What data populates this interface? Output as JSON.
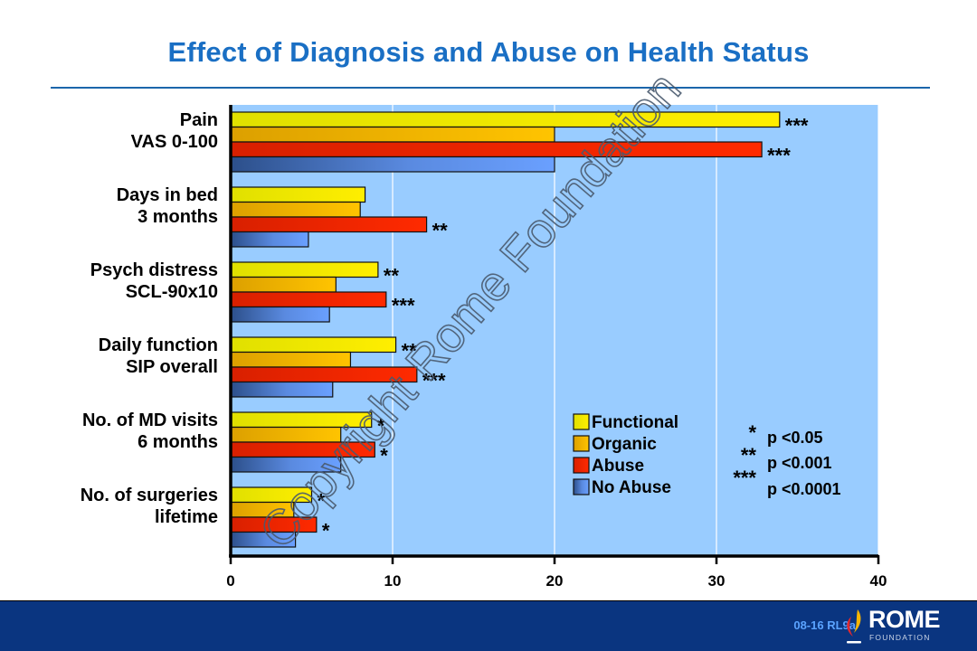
{
  "title": "Effect of Diagnosis and Abuse on Health Status",
  "footer": {
    "slide_code": "08-16  RL9a",
    "logo_word": "ROME",
    "logo_sub": "FOUNDATION"
  },
  "watermark": "Copyright Rome Foundation",
  "colors": {
    "title": "#1a6fc4",
    "plot_bg": "#99ccff",
    "functional": "#f5e600",
    "organic": "#f4b400",
    "abuse": "#ff2200",
    "no_abuse": "#6699ff",
    "footer_bg": "#0a3580"
  },
  "chart_data": {
    "type": "bar",
    "orientation": "horizontal",
    "title": "Effect of Diagnosis and Abuse on Health Status",
    "xlabel": "",
    "ylabel": "",
    "xlim": [
      0,
      40
    ],
    "xticks": [
      0,
      10,
      20,
      30,
      40
    ],
    "grid": true,
    "legend_position": "bottom-right",
    "categories": [
      [
        "Pain",
        "VAS 0-100"
      ],
      [
        "Days in bed",
        "3 months"
      ],
      [
        "Psych distress",
        "SCL-90x10"
      ],
      [
        "Daily function",
        "SIP overall"
      ],
      [
        "No. of MD visits",
        "6 months"
      ],
      [
        "No. of surgeries",
        "lifetime"
      ]
    ],
    "series": [
      {
        "name": "Functional",
        "key": "functional",
        "values": [
          33.9,
          8.3,
          9.1,
          10.2,
          8.7,
          5.0
        ],
        "sig": [
          "***",
          "",
          "**",
          "**",
          "*",
          "*"
        ]
      },
      {
        "name": "Organic",
        "key": "organic",
        "values": [
          20.0,
          8.0,
          6.5,
          7.4,
          6.8,
          3.9
        ],
        "sig": [
          "",
          "",
          "",
          "",
          "",
          ""
        ]
      },
      {
        "name": "Abuse",
        "key": "abuse",
        "values": [
          32.8,
          12.1,
          9.6,
          11.5,
          8.9,
          5.3
        ],
        "sig": [
          "***",
          "**",
          "***",
          "***",
          "*",
          "*"
        ]
      },
      {
        "name": "No Abuse",
        "key": "no_abuse",
        "values": [
          20.0,
          4.8,
          6.1,
          6.3,
          6.8,
          4.0
        ],
        "sig": [
          "",
          "",
          "",
          "",
          "",
          ""
        ]
      }
    ],
    "significance_key": [
      {
        "stars": "*",
        "label": "p <0.05"
      },
      {
        "stars": "**",
        "label": "p <0.001"
      },
      {
        "stars": "***",
        "label": "p <0.0001"
      }
    ]
  }
}
